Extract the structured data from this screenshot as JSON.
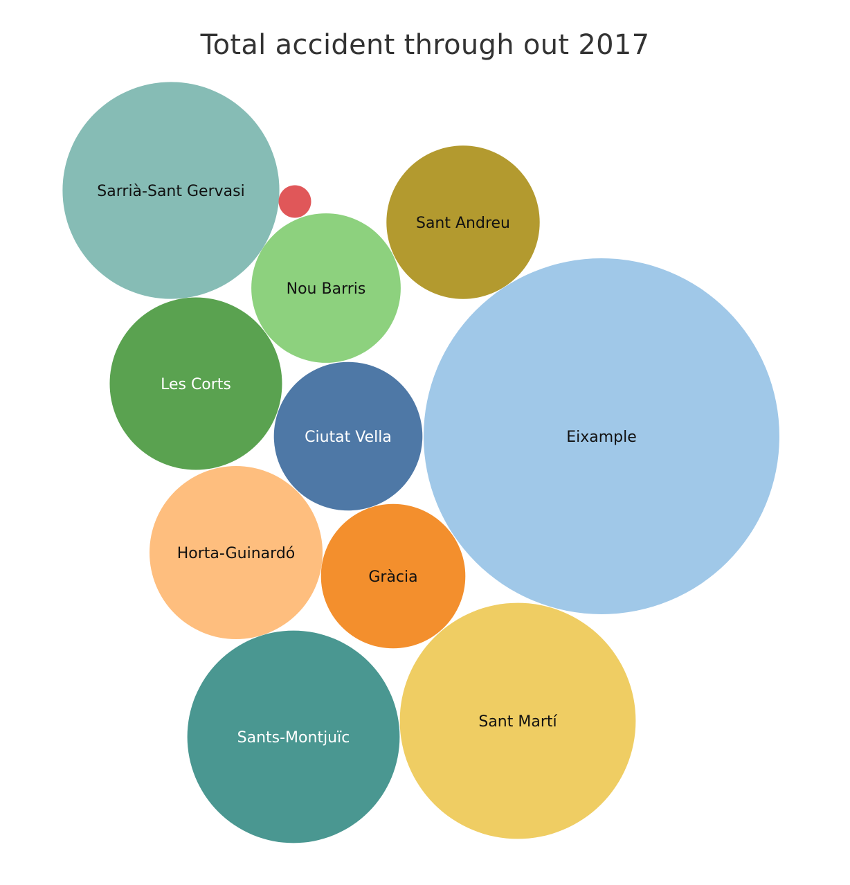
{
  "chart_data": {
    "type": "bubble",
    "title": "Total accident through out 2017",
    "measure": "Total accidents",
    "series": [
      {
        "name": "Eixample",
        "value": 2640,
        "color": "#a0c8e8",
        "label_color": "#111111"
      },
      {
        "name": "Sant Martí",
        "value": 1160,
        "color": "#efcd63",
        "label_color": "#111111"
      },
      {
        "name": "Sarrià-Sant Gervasi",
        "value": 980,
        "color": "#86bcb5",
        "label_color": "#111111"
      },
      {
        "name": "Sants-Montjuïc",
        "value": 940,
        "color": "#4a9791",
        "label_color": "#ffffff"
      },
      {
        "name": "Horta-Guinardó",
        "value": 625,
        "color": "#febe7e",
        "label_color": "#111111"
      },
      {
        "name": "Les Corts",
        "value": 620,
        "color": "#5aa250",
        "label_color": "#ffffff"
      },
      {
        "name": "Sant Andreu",
        "value": 490,
        "color": "#b39a2f",
        "label_color": "#111111"
      },
      {
        "name": "Nou Barris",
        "value": 465,
        "color": "#8dd17e",
        "label_color": "#111111"
      },
      {
        "name": "Ciutat Vella",
        "value": 460,
        "color": "#4e78a6",
        "label_color": "#ffffff"
      },
      {
        "name": "Gràcia",
        "value": 435,
        "color": "#f38f2d",
        "label_color": "#111111"
      },
      {
        "name": "",
        "value": 22,
        "color": "#e05759",
        "label_color": "#111111"
      }
    ]
  }
}
